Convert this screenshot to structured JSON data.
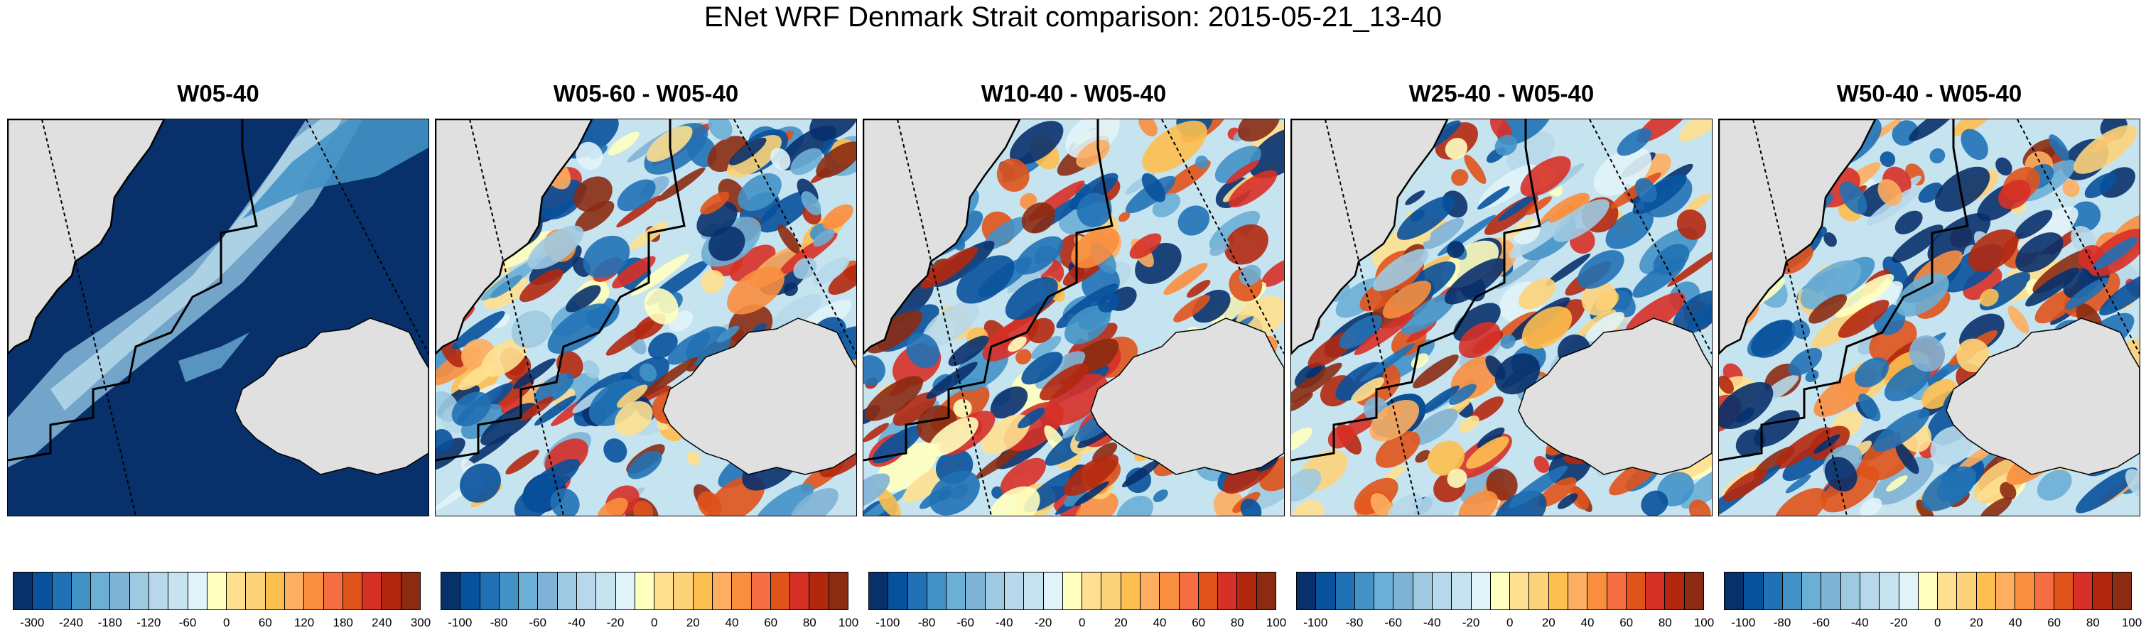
{
  "title": "ENet WRF Denmark Strait comparison: 2015-05-21_13-40",
  "panels": [
    {
      "title": "W05-40",
      "kind": "absolute",
      "colorbar_ticks": [
        "-300",
        "-240",
        "-180",
        "-120",
        "-60",
        "0",
        "60",
        "120",
        "180",
        "240",
        "300"
      ]
    },
    {
      "title": "W05-60 - W05-40",
      "kind": "difference",
      "colorbar_ticks": [
        "-100",
        "-80",
        "-60",
        "-40",
        "-20",
        "0",
        "20",
        "40",
        "60",
        "80",
        "100"
      ]
    },
    {
      "title": "W10-40 - W05-40",
      "kind": "difference",
      "colorbar_ticks": [
        "-100",
        "-80",
        "-60",
        "-40",
        "-20",
        "0",
        "20",
        "40",
        "60",
        "80",
        "100"
      ]
    },
    {
      "title": "W25-40 - W05-40",
      "kind": "difference",
      "colorbar_ticks": [
        "-100",
        "-80",
        "-60",
        "-40",
        "-20",
        "0",
        "20",
        "40",
        "60",
        "80",
        "100"
      ]
    },
    {
      "title": "W50-40 - W05-40",
      "kind": "difference",
      "colorbar_ticks": [
        "-100",
        "-80",
        "-60",
        "-40",
        "-20",
        "0",
        "20",
        "40",
        "60",
        "80",
        "100"
      ]
    }
  ],
  "colormap": [
    "#08306b",
    "#08519c",
    "#2171b5",
    "#4292c6",
    "#6baed6",
    "#7fb3d5",
    "#9ecae1",
    "#b6d8ea",
    "#c6e4f0",
    "#e0f3f8",
    "#ffffbf",
    "#fee090",
    "#fdd37a",
    "#fdbf4f",
    "#fdae61",
    "#f98e3f",
    "#f46d43",
    "#e0531b",
    "#d73027",
    "#b2280f",
    "#8b2b12"
  ],
  "land_color": "#e0e0e0"
}
